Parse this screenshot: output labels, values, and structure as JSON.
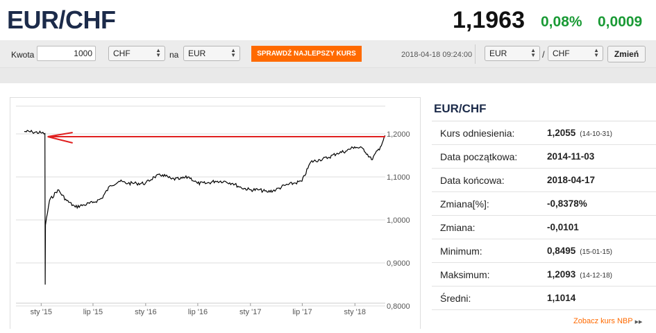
{
  "header": {
    "pair": "EUR/CHF",
    "rate": "1,1963",
    "change_pct": "0,08%",
    "change_abs": "0,0009",
    "accent_green": "#1a9a35"
  },
  "converter": {
    "amount_label": "Kwota",
    "amount_value": "1000",
    "from_currency": "CHF",
    "to_label": "na",
    "to_currency": "EUR",
    "best_rate_button": "SPRAWDŹ NAJLEPSZY KURS",
    "timestamp": "2018-04-18 09:24:00",
    "pair_base": "EUR",
    "pair_separator": "/",
    "pair_quote": "CHF",
    "change_button": "Zmień",
    "accent_orange": "#ff6a00"
  },
  "chart_data": {
    "type": "line",
    "title": "",
    "ylim": [
      0.8,
      1.2
    ],
    "yticks": [
      "1,2000",
      "1,1000",
      "1,0000",
      "0,9000",
      "0,8000"
    ],
    "xticks": [
      "sty '15",
      "lip '15",
      "sty '16",
      "lip '16",
      "sty '17",
      "lip '17",
      "sty '18"
    ],
    "series": [
      {
        "values": [
          [
            "2014-11-03",
            1.2055
          ],
          [
            "2014-12-01",
            1.2045
          ],
          [
            "2014-12-31",
            1.2024
          ],
          [
            "2015-01-14",
            1.201
          ],
          [
            "2015-01-15",
            0.8495
          ],
          [
            "2015-01-16",
            0.988
          ],
          [
            "2015-01-30",
            1.045
          ],
          [
            "2015-02-28",
            1.07
          ],
          [
            "2015-03-31",
            1.045
          ],
          [
            "2015-04-30",
            1.03
          ],
          [
            "2015-05-31",
            1.035
          ],
          [
            "2015-06-30",
            1.04
          ],
          [
            "2015-07-31",
            1.05
          ],
          [
            "2015-08-31",
            1.08
          ],
          [
            "2015-09-30",
            1.09
          ],
          [
            "2015-10-31",
            1.085
          ],
          [
            "2015-11-30",
            1.085
          ],
          [
            "2015-12-31",
            1.085
          ],
          [
            "2016-01-31",
            1.1
          ],
          [
            "2016-02-29",
            1.105
          ],
          [
            "2016-03-31",
            1.095
          ],
          [
            "2016-04-30",
            1.095
          ],
          [
            "2016-05-31",
            1.1
          ],
          [
            "2016-06-30",
            1.085
          ],
          [
            "2016-07-31",
            1.085
          ],
          [
            "2016-08-31",
            1.09
          ],
          [
            "2016-09-30",
            1.09
          ],
          [
            "2016-10-31",
            1.085
          ],
          [
            "2016-11-30",
            1.075
          ],
          [
            "2016-12-31",
            1.07
          ],
          [
            "2017-01-31",
            1.07
          ],
          [
            "2017-02-28",
            1.065
          ],
          [
            "2017-03-31",
            1.07
          ],
          [
            "2017-04-30",
            1.08
          ],
          [
            "2017-05-31",
            1.085
          ],
          [
            "2017-06-30",
            1.09
          ],
          [
            "2017-07-31",
            1.135
          ],
          [
            "2017-08-31",
            1.14
          ],
          [
            "2017-09-30",
            1.145
          ],
          [
            "2017-10-31",
            1.155
          ],
          [
            "2017-11-30",
            1.16
          ],
          [
            "2017-12-31",
            1.17
          ],
          [
            "2018-01-31",
            1.165
          ],
          [
            "2018-02-28",
            1.14
          ],
          [
            "2018-03-31",
            1.17
          ],
          [
            "2018-04-17",
            1.196
          ]
        ]
      }
    ],
    "line_color": "#000000",
    "grid": true,
    "annotation": {
      "type": "arrow",
      "y": 1.2,
      "color": "#e02020"
    }
  },
  "info": {
    "title": "EUR/CHF",
    "rows": [
      {
        "label": "Kurs odniesienia:",
        "value": "1,2055",
        "date": "(14-10-31)"
      },
      {
        "label": "Data początkowa:",
        "value": "2014-11-03",
        "date": ""
      },
      {
        "label": "Data końcowa:",
        "value": "2018-04-17",
        "date": ""
      },
      {
        "label": "Zmiana[%]:",
        "value": "-0,8378%",
        "date": ""
      },
      {
        "label": "Zmiana:",
        "value": "-0,0101",
        "date": ""
      },
      {
        "label": "Minimum:",
        "value": "0,8495",
        "date": "(15-01-15)"
      },
      {
        "label": "Maksimum:",
        "value": "1,2093",
        "date": "(14-12-18)"
      },
      {
        "label": "Średni:",
        "value": "1,1014",
        "date": ""
      }
    ],
    "nbp_link": "Zobacz kurs NBP"
  }
}
